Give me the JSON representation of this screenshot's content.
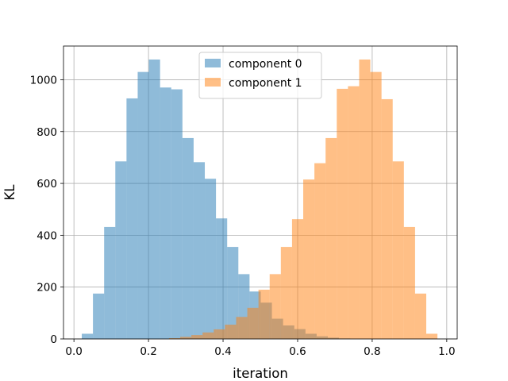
{
  "chart_data": {
    "type": "histogram",
    "title": "",
    "xlabel": "iteration",
    "ylabel": "KL",
    "xlim": [
      -0.028,
      1.028
    ],
    "ylim": [
      0,
      1130
    ],
    "xticks": [
      0.0,
      0.2,
      0.4,
      0.6,
      0.8,
      1.0
    ],
    "xtick_labels": [
      "0.0",
      "0.2",
      "0.4",
      "0.6",
      "0.8",
      "1.0"
    ],
    "yticks": [
      0,
      200,
      400,
      600,
      800,
      1000
    ],
    "ytick_labels": [
      "0",
      "200",
      "400",
      "600",
      "800",
      "1000"
    ],
    "grid": true,
    "legend_position": "upper center",
    "bars_alpha": 0.5,
    "series": [
      {
        "name": "component 0",
        "color": "#1f77b4",
        "bins": [
          [
            0.021,
            0.051,
            20
          ],
          [
            0.051,
            0.081,
            175
          ],
          [
            0.081,
            0.111,
            432
          ],
          [
            0.111,
            0.141,
            685
          ],
          [
            0.141,
            0.171,
            928
          ],
          [
            0.171,
            0.201,
            1030
          ],
          [
            0.201,
            0.231,
            1078
          ],
          [
            0.231,
            0.261,
            970
          ],
          [
            0.261,
            0.291,
            963
          ],
          [
            0.291,
            0.321,
            775
          ],
          [
            0.321,
            0.351,
            682
          ],
          [
            0.351,
            0.381,
            618
          ],
          [
            0.381,
            0.411,
            465
          ],
          [
            0.411,
            0.441,
            355
          ],
          [
            0.441,
            0.471,
            250
          ],
          [
            0.471,
            0.501,
            183
          ],
          [
            0.501,
            0.531,
            140
          ],
          [
            0.531,
            0.561,
            78
          ],
          [
            0.561,
            0.591,
            52
          ],
          [
            0.591,
            0.621,
            38
          ],
          [
            0.621,
            0.651,
            20
          ],
          [
            0.651,
            0.681,
            10
          ],
          [
            0.681,
            0.711,
            5
          ],
          [
            0.711,
            0.741,
            2
          ]
        ]
      },
      {
        "name": "component 1",
        "color": "#ff7f0e",
        "bins": [
          [
            0.255,
            0.285,
            3
          ],
          [
            0.285,
            0.315,
            8
          ],
          [
            0.315,
            0.345,
            15
          ],
          [
            0.345,
            0.375,
            25
          ],
          [
            0.375,
            0.405,
            37
          ],
          [
            0.405,
            0.435,
            55
          ],
          [
            0.435,
            0.465,
            85
          ],
          [
            0.465,
            0.495,
            120
          ],
          [
            0.495,
            0.525,
            190
          ],
          [
            0.525,
            0.555,
            250
          ],
          [
            0.555,
            0.585,
            355
          ],
          [
            0.585,
            0.615,
            462
          ],
          [
            0.615,
            0.645,
            615
          ],
          [
            0.645,
            0.675,
            678
          ],
          [
            0.675,
            0.705,
            775
          ],
          [
            0.705,
            0.735,
            965
          ],
          [
            0.735,
            0.765,
            975
          ],
          [
            0.765,
            0.795,
            1078
          ],
          [
            0.795,
            0.825,
            1030
          ],
          [
            0.825,
            0.855,
            925
          ],
          [
            0.855,
            0.885,
            685
          ],
          [
            0.885,
            0.915,
            432
          ],
          [
            0.915,
            0.945,
            175
          ],
          [
            0.945,
            0.975,
            20
          ]
        ]
      }
    ]
  }
}
